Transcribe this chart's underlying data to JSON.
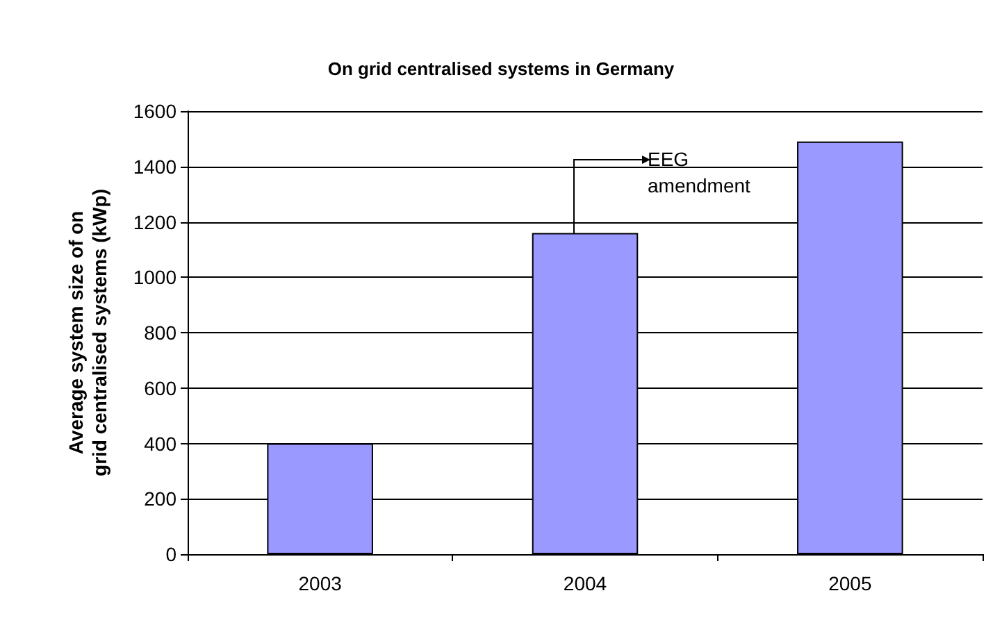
{
  "chart_data": {
    "type": "bar",
    "title": "On grid centralised systems in Germany",
    "ylabel": "Average system size of on grid centralised systems (kWp)",
    "categories": [
      "2003",
      "2004",
      "2005"
    ],
    "values": [
      400,
      1160,
      1490
    ],
    "color": "#9999ff",
    "ylim": [
      0,
      1600
    ],
    "yticks": [
      0,
      200,
      400,
      600,
      800,
      1000,
      1200,
      1400,
      1600
    ],
    "grid": "y",
    "annotations": [
      "EEG amendment"
    ]
  }
}
